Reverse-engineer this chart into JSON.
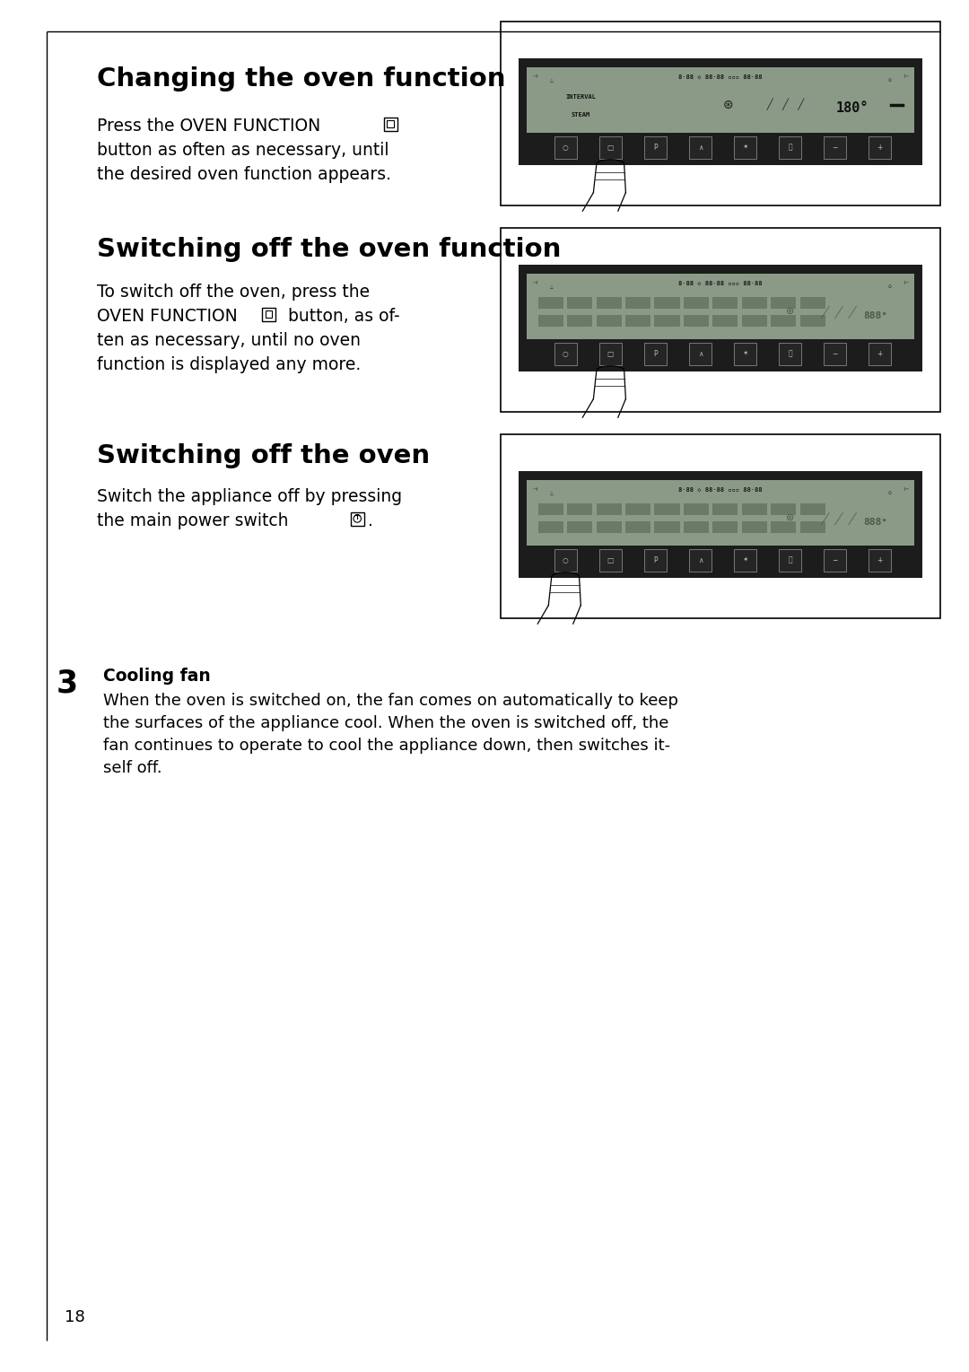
{
  "bg_color": "#ffffff",
  "border_color": "#000000",
  "page_number": "18",
  "section1_title": "Changing the oven function",
  "section1_line1": "Press the OVEN FUNCTION",
  "section1_line2": "button as often as necessary, until",
  "section1_line3": "the desired oven function appears.",
  "section2_title": "Switching off the oven function",
  "section2_line1": "To switch off the oven, press the",
  "section2_line2_a": "OVEN FUNCTION",
  "section2_line2_b": " button, as of-",
  "section2_line3": "ten as necessary, until no oven",
  "section2_line4": "function is displayed any more.",
  "section3_title": "Switching off the oven",
  "section3_line1": "Switch the appliance off by pressing",
  "section3_line2_a": "the main power switch",
  "section3_line2_b": ".",
  "section4_number": "3",
  "section4_title": "Cooling fan",
  "section4_line1": "When the oven is switched on, the fan comes on automatically to keep",
  "section4_line2": "the surfaces of the appliance cool. When the oven is switched off, the",
  "section4_line3": "fan continues to operate to cool the appliance down, then switches it-",
  "section4_line4": "self off.",
  "panel_outer_color": "#ffffff",
  "panel_border_color": "#000000",
  "panel_black_color": "#1a1a1a",
  "display_bg_color": "#8a9a88",
  "display_dark_color": "#6a7a68",
  "btn_color": "#2a2a2a",
  "btn_border_color": "#888888",
  "btn_text_color": "#cccccc"
}
